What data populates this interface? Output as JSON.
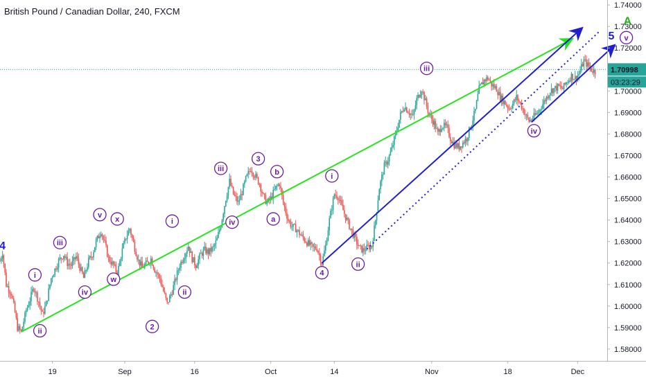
{
  "chart_data": {
    "type": "candlestick",
    "title": "British Pound / Canadian Dollar, 240, FXCM",
    "x_tick_labels": [
      "19",
      "Sep",
      "16",
      "Oct",
      "14",
      "Nov",
      "18",
      "Dec"
    ],
    "y_tick_labels": [
      "1.74000",
      "1.73000",
      "1.72000",
      "1.71000",
      "1.70000",
      "1.69000",
      "1.68000",
      "1.67000",
      "1.66000",
      "1.65000",
      "1.64000",
      "1.63000",
      "1.62000",
      "1.61000",
      "1.60000",
      "1.59000",
      "1.58000"
    ],
    "ylim": [
      1.5745,
      1.7423
    ],
    "current_price": "1.70998",
    "countdown": "03:23:29",
    "price_path": [
      [
        0,
        1.621
      ],
      [
        2,
        1.625
      ],
      [
        5,
        1.61
      ],
      [
        9,
        1.606
      ],
      [
        12,
        1.597
      ],
      [
        14,
        1.59
      ],
      [
        17,
        1.588
      ],
      [
        21,
        1.598
      ],
      [
        24,
        1.603
      ],
      [
        27,
        1.609
      ],
      [
        31,
        1.602
      ],
      [
        34,
        1.596
      ],
      [
        37,
        1.601
      ],
      [
        41,
        1.613
      ],
      [
        44,
        1.617
      ],
      [
        47,
        1.621
      ],
      [
        51,
        1.624
      ],
      [
        54,
        1.62
      ],
      [
        57,
        1.619
      ],
      [
        61,
        1.623
      ],
      [
        64,
        1.618
      ],
      [
        67,
        1.613
      ],
      [
        71,
        1.621
      ],
      [
        74,
        1.624
      ],
      [
        77,
        1.63
      ],
      [
        81,
        1.635
      ],
      [
        84,
        1.629
      ],
      [
        87,
        1.622
      ],
      [
        91,
        1.619
      ],
      [
        94,
        1.615
      ],
      [
        98,
        1.626
      ],
      [
        101,
        1.632
      ],
      [
        104,
        1.636
      ],
      [
        108,
        1.627
      ],
      [
        111,
        1.621
      ],
      [
        114,
        1.618
      ],
      [
        118,
        1.62
      ],
      [
        121,
        1.622
      ],
      [
        124,
        1.617
      ],
      [
        128,
        1.613
      ],
      [
        131,
        1.607
      ],
      [
        134,
        1.601
      ],
      [
        138,
        1.607
      ],
      [
        141,
        1.613
      ],
      [
        144,
        1.619
      ],
      [
        148,
        1.624
      ],
      [
        151,
        1.628
      ],
      [
        154,
        1.622
      ],
      [
        157,
        1.619
      ],
      [
        161,
        1.624
      ],
      [
        164,
        1.626
      ],
      [
        167,
        1.625
      ],
      [
        171,
        1.627
      ],
      [
        174,
        1.631
      ],
      [
        177,
        1.638
      ],
      [
        181,
        1.65
      ],
      [
        184,
        1.658
      ],
      [
        187,
        1.652
      ],
      [
        191,
        1.648
      ],
      [
        194,
        1.653
      ],
      [
        197,
        1.659
      ],
      [
        201,
        1.664
      ],
      [
        204,
        1.661
      ],
      [
        208,
        1.657
      ],
      [
        211,
        1.651
      ],
      [
        214,
        1.648
      ],
      [
        217,
        1.65
      ],
      [
        221,
        1.655
      ],
      [
        224,
        1.657
      ],
      [
        227,
        1.648
      ],
      [
        231,
        1.64
      ],
      [
        234,
        1.637
      ],
      [
        237,
        1.636
      ],
      [
        241,
        1.633
      ],
      [
        244,
        1.631
      ],
      [
        247,
        1.629
      ],
      [
        251,
        1.627
      ],
      [
        254,
        1.627
      ],
      [
        258,
        1.62
      ],
      [
        261,
        1.628
      ],
      [
        264,
        1.64
      ],
      [
        268,
        1.652
      ],
      [
        271,
        1.651
      ],
      [
        274,
        1.646
      ],
      [
        278,
        1.64
      ],
      [
        281,
        1.636
      ],
      [
        284,
        1.632
      ],
      [
        288,
        1.627
      ],
      [
        291,
        1.626
      ],
      [
        294,
        1.627
      ],
      [
        298,
        1.628
      ],
      [
        301,
        1.64
      ],
      [
        304,
        1.655
      ],
      [
        308,
        1.665
      ],
      [
        311,
        1.668
      ],
      [
        314,
        1.673
      ],
      [
        318,
        1.682
      ],
      [
        321,
        1.689
      ],
      [
        324,
        1.693
      ],
      [
        328,
        1.69
      ],
      [
        331,
        1.688
      ],
      [
        334,
        1.696
      ],
      [
        338,
        1.701
      ],
      [
        341,
        1.695
      ],
      [
        344,
        1.689
      ],
      [
        348,
        1.685
      ],
      [
        351,
        1.68
      ],
      [
        354,
        1.684
      ],
      [
        358,
        1.683
      ],
      [
        361,
        1.678
      ],
      [
        364,
        1.675
      ],
      [
        368,
        1.674
      ],
      [
        371,
        1.676
      ],
      [
        374,
        1.678
      ],
      [
        378,
        1.685
      ],
      [
        381,
        1.691
      ],
      [
        384,
        1.701
      ],
      [
        388,
        1.705
      ],
      [
        391,
        1.706
      ],
      [
        394,
        1.703
      ],
      [
        398,
        1.701
      ],
      [
        401,
        1.697
      ],
      [
        404,
        1.695
      ],
      [
        408,
        1.692
      ],
      [
        411,
        1.694
      ],
      [
        414,
        1.697
      ],
      [
        418,
        1.693
      ],
      [
        421,
        1.689
      ],
      [
        424,
        1.686
      ],
      [
        428,
        1.688
      ],
      [
        431,
        1.69
      ],
      [
        434,
        1.693
      ],
      [
        438,
        1.697
      ],
      [
        441,
        1.7
      ],
      [
        444,
        1.701
      ],
      [
        448,
        1.702
      ],
      [
        451,
        1.701
      ],
      [
        454,
        1.704
      ],
      [
        458,
        1.707
      ],
      [
        461,
        1.706
      ],
      [
        464,
        1.708
      ],
      [
        468,
        1.714
      ],
      [
        471,
        1.712
      ],
      [
        474,
        1.71
      ],
      [
        477,
        1.709
      ]
    ],
    "trend_lines": [
      {
        "name": "green",
        "color": "#22e51a",
        "points": [
          [
            17,
            1.588
          ],
          [
            458,
            1.724
          ]
        ]
      },
      {
        "name": "blue",
        "color": "#1f1fd0",
        "points": [
          [
            258,
            1.62
          ],
          [
            466,
            1.729
          ]
        ]
      },
      {
        "name": "blue-dotted",
        "color": "#1f1fd0",
        "dashed": true,
        "points": [
          [
            294,
            1.6265
          ],
          [
            481,
            1.728
          ]
        ]
      },
      {
        "name": "blue-arrow-small",
        "color": "#1f1fd0",
        "points": [
          [
            426,
            1.6855
          ],
          [
            492,
            1.721
          ]
        ]
      }
    ],
    "wave_labels": [
      {
        "text": "4",
        "x": 2,
        "y": 1.628,
        "color": "#1f1fd0",
        "shape": "plain"
      },
      {
        "text": "iii",
        "x": 48,
        "y": 1.6295,
        "color": "#6a1b9a",
        "shape": "circle"
      },
      {
        "text": "i",
        "x": 28,
        "y": 1.6145,
        "color": "#6a1b9a",
        "shape": "circle"
      },
      {
        "text": "ii",
        "x": 32,
        "y": 1.5885,
        "color": "#6a1b9a",
        "shape": "circle"
      },
      {
        "text": "iv",
        "x": 68,
        "y": 1.6065,
        "color": "#6a1b9a",
        "shape": "circle"
      },
      {
        "text": "v",
        "x": 80,
        "y": 1.6425,
        "color": "#6a1b9a",
        "shape": "circle"
      },
      {
        "text": "x",
        "x": 94,
        "y": 1.6405,
        "color": "#6a1b9a",
        "shape": "circle"
      },
      {
        "text": "w",
        "x": 91,
        "y": 1.6125,
        "color": "#6a1b9a",
        "shape": "circle"
      },
      {
        "text": "i",
        "x": 138,
        "y": 1.6395,
        "color": "#6a1b9a",
        "shape": "circle"
      },
      {
        "text": "ii",
        "x": 148,
        "y": 1.6065,
        "color": "#6a1b9a",
        "shape": "circle"
      },
      {
        "text": "2",
        "x": 122,
        "y": 1.5905,
        "color": "#6a1b9a",
        "shape": "circle"
      },
      {
        "text": "iii",
        "x": 177,
        "y": 1.664,
        "color": "#6a1b9a",
        "shape": "circle"
      },
      {
        "text": "iv",
        "x": 186,
        "y": 1.639,
        "color": "#6a1b9a",
        "shape": "circle"
      },
      {
        "text": "3",
        "x": 207,
        "y": 1.6685,
        "color": "#6a1b9a",
        "shape": "circle"
      },
      {
        "text": "b",
        "x": 222,
        "y": 1.6625,
        "color": "#6a1b9a",
        "shape": "circle"
      },
      {
        "text": "a",
        "x": 219,
        "y": 1.6405,
        "color": "#6a1b9a",
        "shape": "circle"
      },
      {
        "text": "4",
        "x": 258,
        "y": 1.6155,
        "color": "#6a1b9a",
        "shape": "circle"
      },
      {
        "text": "i",
        "x": 266,
        "y": 1.6605,
        "color": "#6a1b9a",
        "shape": "circle"
      },
      {
        "text": "ii",
        "x": 287,
        "y": 1.6195,
        "color": "#6a1b9a",
        "shape": "circle"
      },
      {
        "text": "iii",
        "x": 342,
        "y": 1.7105,
        "color": "#6a1b9a",
        "shape": "circle"
      },
      {
        "text": "iv",
        "x": 428,
        "y": 1.6815,
        "color": "#6a1b9a",
        "shape": "circle"
      },
      {
        "text": "v",
        "x": 502,
        "y": 1.7248,
        "color": "#6a1b9a",
        "shape": "circle"
      },
      {
        "text": "5",
        "x": 490,
        "y": 1.7255,
        "color": "#1f1fd0",
        "shape": "plain"
      },
      {
        "text": "A",
        "x": 503,
        "y": 1.7325,
        "color": "#22b51a",
        "shape": "plain"
      }
    ],
    "grid": false,
    "legend": "none"
  }
}
